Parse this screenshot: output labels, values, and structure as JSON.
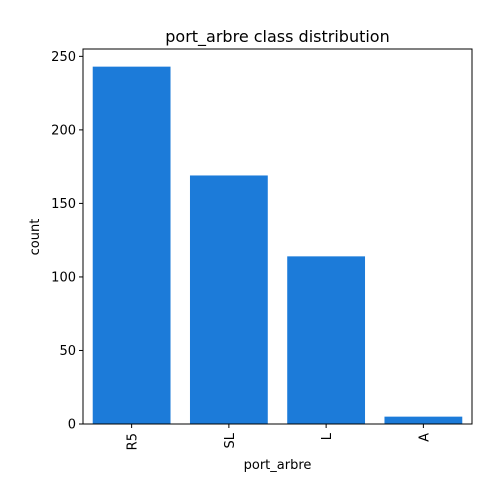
{
  "chart_data": {
    "type": "bar",
    "title": "port_arbre class distribution",
    "xlabel": "port_arbre",
    "ylabel": "count",
    "categories": [
      "R5",
      "SL",
      "L",
      "A"
    ],
    "values": [
      243,
      169,
      114,
      5
    ],
    "ylim": [
      0,
      255
    ],
    "yticks": [
      0,
      50,
      100,
      150,
      200,
      250
    ],
    "bar_color": "#1c7bd9",
    "grid": false,
    "legend": "none"
  }
}
